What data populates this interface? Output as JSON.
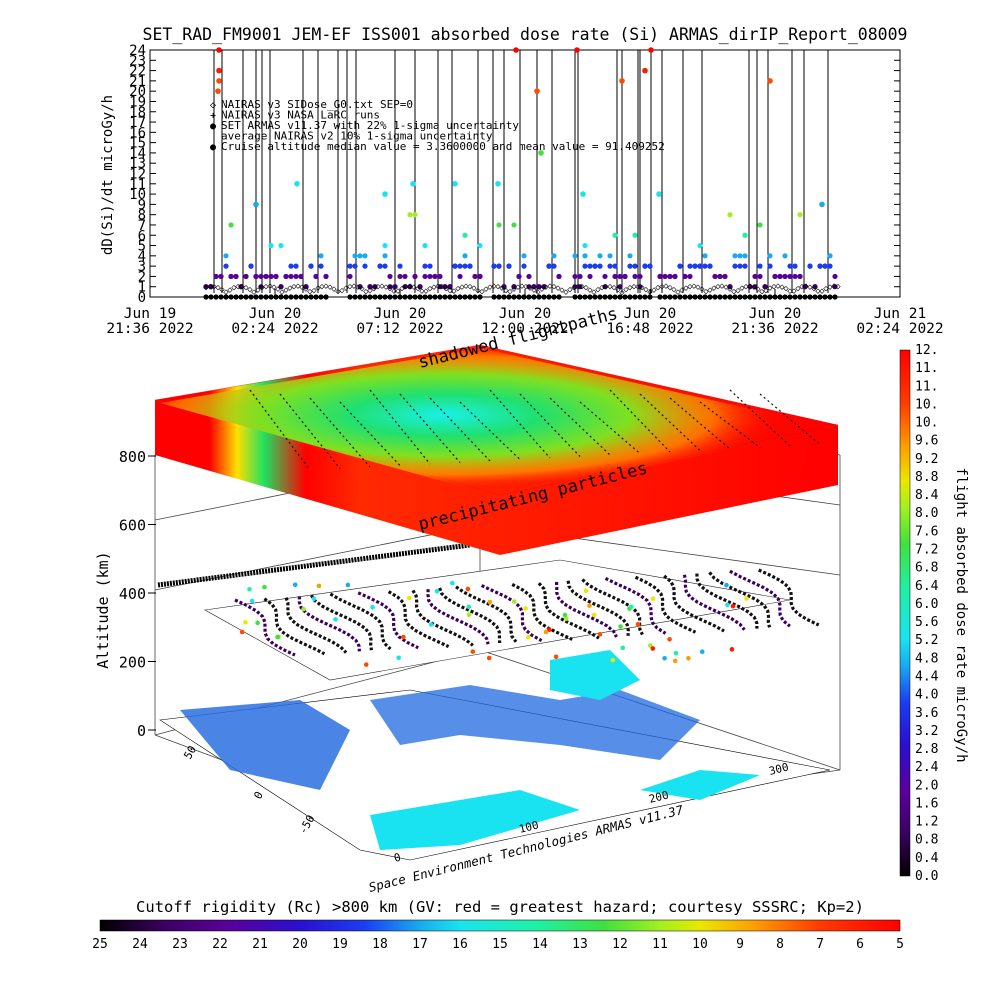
{
  "chart_data": [
    {
      "type": "scatter",
      "title": "SET_RAD_FM9001  JEM-EF ISS001 absorbed dose rate (Si) ARMAS_dirIP_Report_08009",
      "ylabel": "dD(Si)/dt microGy/h",
      "ylim": [
        0,
        24
      ],
      "yticks": [
        "0",
        "1",
        "2",
        "3",
        "4",
        "5",
        "6",
        "7",
        "8",
        "9",
        "10",
        "11",
        "12",
        "13",
        "14",
        "15",
        "16",
        "17",
        "18",
        "19",
        "20",
        "21",
        "22",
        "23",
        "24"
      ],
      "xlabel": "",
      "xticks": [
        {
          "top": "Jun 19",
          "bottom": "21:36 2022"
        },
        {
          "top": "Jun 20",
          "bottom": "02:24 2022"
        },
        {
          "top": "Jun 20",
          "bottom": "07:12 2022"
        },
        {
          "top": "Jun 20",
          "bottom": "12:00 2022"
        },
        {
          "top": "Jun 20",
          "bottom": "16:48 2022"
        },
        {
          "top": "Jun 20",
          "bottom": "21:36 2022"
        },
        {
          "top": "Jun 21",
          "bottom": "02:24 2022"
        }
      ],
      "legend": [
        {
          "symbol": "◇",
          "color": "#000000",
          "text": "NAIRAS v3 SIDose_G0.txt SEP=0"
        },
        {
          "symbol": "+",
          "color": "#000000",
          "text": "NAIRAS v3 NASA LaRC runs"
        },
        {
          "symbol": "●",
          "color": "#1b3cf2",
          "text": "SET ARMAS v11.37 with 22% 1-sigma uncertainty"
        },
        {
          "symbol": "",
          "color": "#000000",
          "text": "average NAIRAS v2 10% 1-sigma uncertainty"
        },
        {
          "symbol": "●",
          "color": "#19e3f0",
          "text": "Cruise altitude median value = 3.3600000 and mean value = 91.409252"
        }
      ],
      "legend_position": "top-left"
    },
    {
      "type": "heatmap",
      "zlabel": "Altitude (km)",
      "zticks": [
        "0",
        "200",
        "400",
        "600",
        "800"
      ],
      "lat_ticks": [
        "-50",
        "0",
        "50"
      ],
      "lon_ticks": [
        "0",
        "100",
        "200",
        "300"
      ],
      "annotations": [
        "shadowed flightpaths",
        "precipitating particles"
      ],
      "credit": "Space Environment Technologies ARMAS v11.37"
    },
    {
      "type": "colorbar",
      "label": "flight absorbed dose rate microGy/h",
      "ticks": [
        "0.0",
        "0.4",
        "0.8",
        "1.2",
        "1.6",
        "2.0",
        "2.4",
        "2.8",
        "3.2",
        "3.6",
        "4.0",
        "4.4",
        "4.8",
        "5.2",
        "5.6",
        "6.0",
        "6.4",
        "6.8",
        "7.2",
        "7.6",
        "8.0",
        "8.4",
        "8.8",
        "9.2",
        "9.6",
        "10.",
        "10.",
        "11.",
        "11.",
        "12."
      ],
      "range": [
        0.0,
        12.0
      ]
    },
    {
      "type": "colorbar",
      "title": "Cutoff rigidity (Rc) >800 km (GV: red = greatest hazard; courtesy SSSRC; Kp=2)",
      "ticks": [
        "25",
        "24",
        "23",
        "22",
        "21",
        "20",
        "19",
        "18",
        "17",
        "16",
        "15",
        "14",
        "13",
        "12",
        "11",
        "10",
        "9",
        "8",
        "7",
        "6",
        "5"
      ],
      "range": [
        25,
        5
      ]
    }
  ],
  "colors": {
    "scale": [
      "#000000",
      "#3a0060",
      "#5a009a",
      "#2a10d0",
      "#1b3cf2",
      "#19aaf0",
      "#19e3f0",
      "#20f0a0",
      "#40e040",
      "#a0f020",
      "#e8e800",
      "#ff9a00",
      "#ff4a00",
      "#ff1a00",
      "#ff0000"
    ]
  }
}
